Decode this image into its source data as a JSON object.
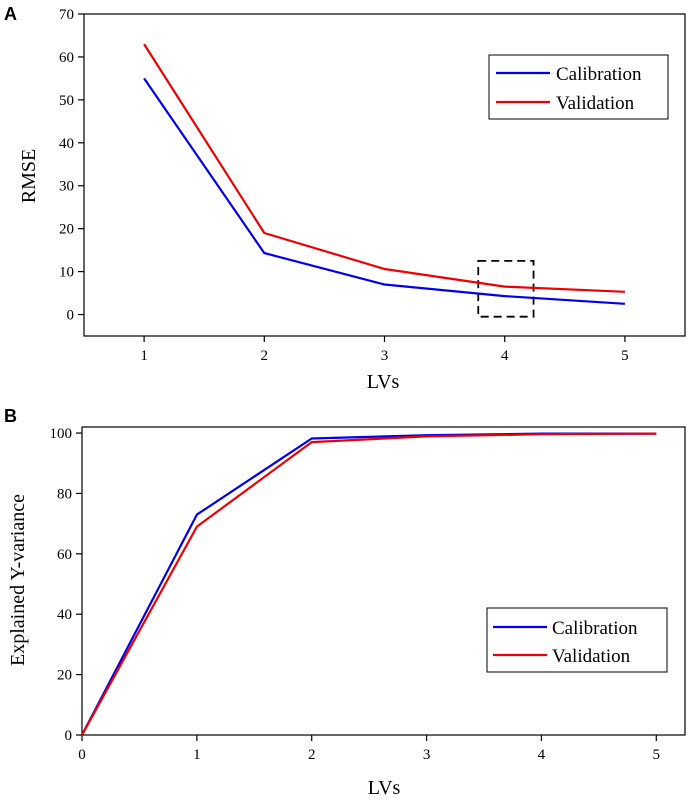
{
  "chart_data": [
    {
      "type": "line",
      "panel_label": "A",
      "title": "",
      "xlabel": "LVs",
      "ylabel": "RMSE",
      "x": [
        1,
        2,
        3,
        4,
        5
      ],
      "xlim": [
        0.5,
        5.5
      ],
      "ylim": [
        -5,
        70
      ],
      "xticks": [
        1,
        2,
        3,
        4,
        5
      ],
      "yticks": [
        0,
        10,
        20,
        30,
        40,
        50,
        60,
        70
      ],
      "grid": false,
      "legend_position": "top-right",
      "series": [
        {
          "name": "Calibration",
          "color": "#0000ee",
          "values": [
            55,
            14.3,
            7,
            4.3,
            2.5
          ]
        },
        {
          "name": "Validation",
          "color": "#ee0000",
          "values": [
            63,
            19,
            10.6,
            6.5,
            5.3
          ]
        }
      ],
      "annotations": [
        {
          "type": "dashed-box",
          "x_range": [
            3.78,
            4.24
          ],
          "y_range": [
            -0.5,
            12.5
          ]
        }
      ]
    },
    {
      "type": "line",
      "panel_label": "B",
      "title": "",
      "xlabel": "LVs",
      "ylabel": "Explained Y-variance",
      "x": [
        0,
        1,
        2,
        3,
        4,
        5
      ],
      "xlim": [
        0,
        5.25
      ],
      "ylim": [
        0,
        102
      ],
      "xticks": [
        0,
        1,
        2,
        3,
        4,
        5
      ],
      "yticks": [
        0,
        20,
        40,
        60,
        80,
        100
      ],
      "grid": false,
      "legend_position": "bottom-right",
      "series": [
        {
          "name": "Calibration",
          "color": "#0000ee",
          "values": [
            0,
            73,
            98.2,
            99.3,
            99.8,
            99.8
          ]
        },
        {
          "name": "Validation",
          "color": "#ee0000",
          "values": [
            0,
            69,
            97,
            98.9,
            99.6,
            99.8
          ]
        }
      ]
    }
  ]
}
